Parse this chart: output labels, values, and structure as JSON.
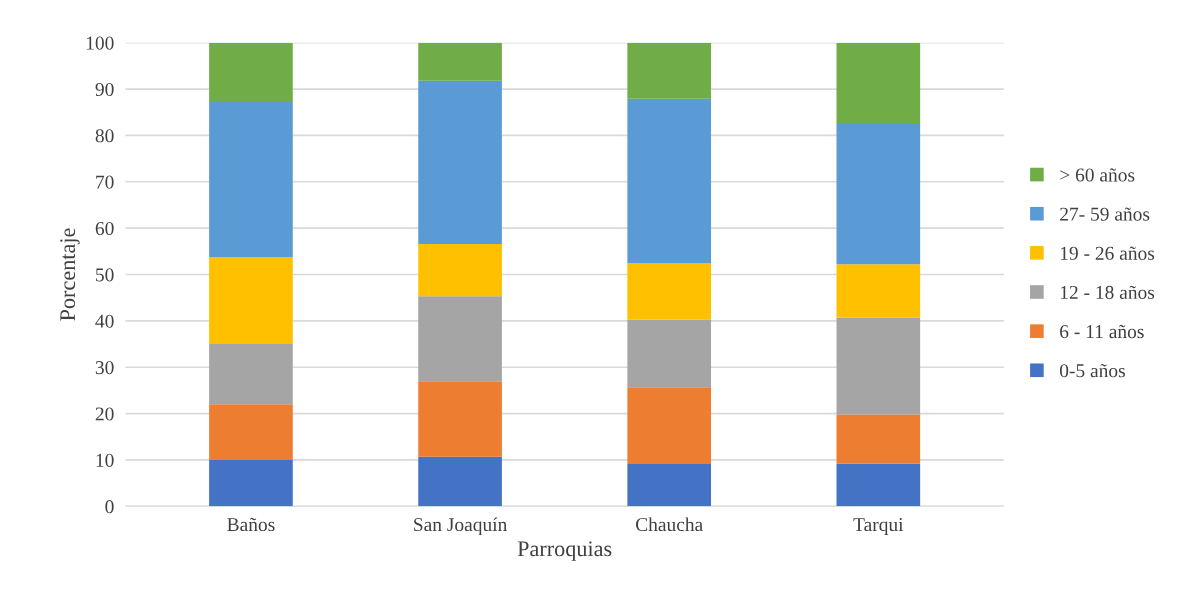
{
  "chart_data": {
    "type": "bar",
    "stacked": true,
    "xlabel": "Parroquias",
    "ylabel": "Porcentaje",
    "categories": [
      "Baños",
      "San Joaquín",
      "Chaucha",
      "Tarqui"
    ],
    "series": [
      {
        "name": "0-5 años",
        "color": "#4472c4",
        "values": [
          10,
          10.7,
          9.1,
          9.2
        ]
      },
      {
        "name": "6 - 11 años",
        "color": "#ed7d31",
        "values": [
          12,
          16.3,
          16.6,
          10.6
        ]
      },
      {
        "name": "12 - 18 años",
        "color": "#a5a5a5",
        "values": [
          13,
          18.3,
          14.6,
          20.9
        ]
      },
      {
        "name": "19 - 26 años",
        "color": "#ffc000",
        "values": [
          18.8,
          11.3,
          12.2,
          11.5
        ]
      },
      {
        "name": "27- 59 años",
        "color": "#5b9bd5",
        "values": [
          33.4,
          35.2,
          35.4,
          30.5
        ]
      },
      {
        "name": "> 60 años",
        "color": "#70ad47",
        "values": [
          12.8,
          8.2,
          12.1,
          17.3
        ]
      }
    ],
    "ylim": [
      0,
      100
    ],
    "yticks": [
      0,
      10,
      20,
      30,
      40,
      50,
      60,
      70,
      80,
      90,
      100
    ],
    "grid": "y",
    "legend": "right"
  }
}
